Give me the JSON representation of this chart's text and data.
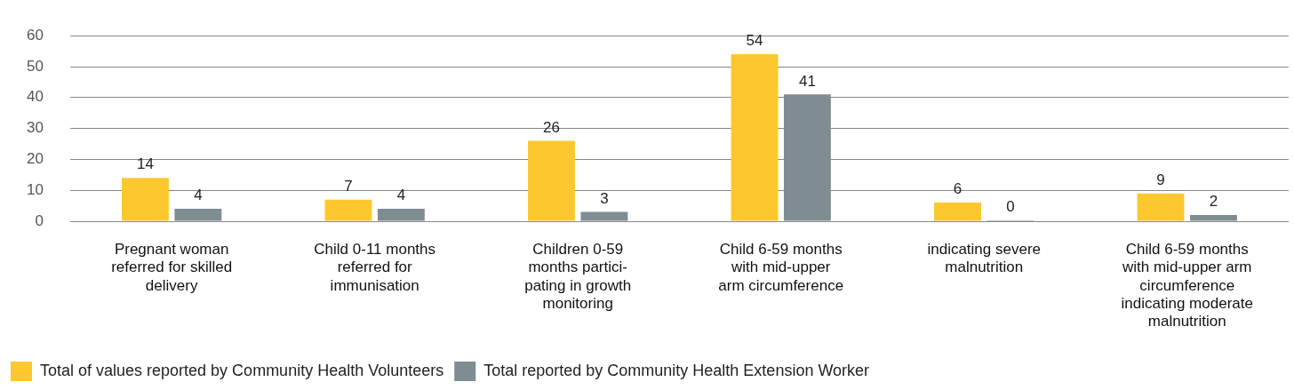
{
  "chart_data": {
    "type": "bar",
    "categories": [
      "Pregnant woman\nreferred for skilled\ndelivery",
      "Child 0-11 months\nreferred for\nimmunisation",
      "Children 0-59\nmonths partici-\npating in growth\nmonitoring",
      "Child 6-59 months\nwith mid-upper\narm circumference",
      "indicating severe\nmalnutrition",
      "Child 6-59 months\nwith mid-upper arm\ncircumference\nindicating moderate\nmalnutrition"
    ],
    "series": [
      {
        "name": "Total of values reported by Community Health Volunteers",
        "color": "#fdc82f",
        "values": [
          14,
          7,
          26,
          54,
          6,
          9
        ]
      },
      {
        "name": "Total reported by Community Health Extension Worker",
        "color": "#7f8c91",
        "values": [
          4,
          4,
          3,
          41,
          0,
          2
        ]
      }
    ],
    "ylim": [
      0,
      60
    ],
    "yticks": [
      0,
      10,
      20,
      30,
      40,
      50,
      60
    ],
    "grid": "y",
    "legend": "bottom",
    "data_labels": true
  }
}
